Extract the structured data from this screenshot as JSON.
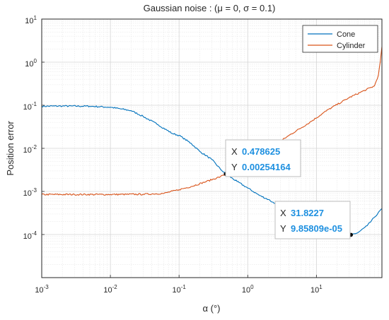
{
  "chart_data": {
    "type": "line",
    "title": "Gaussian noise : (μ = 0, σ = 0.1)",
    "xlabel": "α (°)",
    "ylabel": "Position error",
    "xscale": "log",
    "yscale": "log",
    "xlim": [
      0.001,
      90
    ],
    "ylim": [
      1e-05,
      10
    ],
    "grid": true,
    "minor_grid": true,
    "legend_position": "top-right",
    "x_ticks": [
      {
        "base": "10",
        "exp": "-3"
      },
      {
        "base": "10",
        "exp": "-2"
      },
      {
        "base": "10",
        "exp": "-1"
      },
      {
        "base": "10",
        "exp": "0"
      },
      {
        "base": "10",
        "exp": "1"
      }
    ],
    "y_ticks": [
      {
        "base": "10",
        "exp": "-4"
      },
      {
        "base": "10",
        "exp": "-3"
      },
      {
        "base": "10",
        "exp": "-2"
      },
      {
        "base": "10",
        "exp": "-1"
      },
      {
        "base": "10",
        "exp": "0"
      },
      {
        "base": "10",
        "exp": "1"
      }
    ],
    "series": [
      {
        "name": "Cone",
        "color": "#0072bd",
        "points": [
          [
            0.001,
            0.095
          ],
          [
            0.002,
            0.096
          ],
          [
            0.005,
            0.095
          ],
          [
            0.01,
            0.09
          ],
          [
            0.02,
            0.075
          ],
          [
            0.03,
            0.055
          ],
          [
            0.05,
            0.035
          ],
          [
            0.08,
            0.022
          ],
          [
            0.1,
            0.02
          ],
          [
            0.15,
            0.013
          ],
          [
            0.2,
            0.0085
          ],
          [
            0.3,
            0.0055
          ],
          [
            0.4,
            0.0033
          ],
          [
            0.478625,
            0.00254164
          ],
          [
            0.7,
            0.0017
          ],
          [
            1.0,
            0.0012
          ],
          [
            1.5,
            0.0008
          ],
          [
            2.0,
            0.00065
          ],
          [
            2.5,
            0.00052
          ],
          [
            3.0,
            0.00048
          ],
          [
            5.0,
            0.0004
          ],
          [
            8.0,
            0.00033
          ],
          [
            12.0,
            0.00025
          ],
          [
            18.0,
            0.00017
          ],
          [
            25.0,
            0.00012
          ],
          [
            31.8227,
            9.85809e-05
          ],
          [
            40.0,
            0.00011
          ],
          [
            55.0,
            0.00016
          ],
          [
            70.0,
            0.00025
          ],
          [
            90.0,
            0.0004
          ]
        ]
      },
      {
        "name": "Cylinder",
        "color": "#d95319",
        "points": [
          [
            0.001,
            0.00085
          ],
          [
            0.003,
            0.00085
          ],
          [
            0.01,
            0.00085
          ],
          [
            0.03,
            0.00086
          ],
          [
            0.06,
            0.0009
          ],
          [
            0.1,
            0.0011
          ],
          [
            0.15,
            0.0013
          ],
          [
            0.25,
            0.0017
          ],
          [
            0.4,
            0.0022
          ],
          [
            0.478625,
            0.00254164
          ],
          [
            0.7,
            0.0033
          ],
          [
            1.0,
            0.0048
          ],
          [
            1.5,
            0.007
          ],
          [
            2.5,
            0.012
          ],
          [
            4.0,
            0.02
          ],
          [
            8.0,
            0.04
          ],
          [
            15.0,
            0.08
          ],
          [
            30.0,
            0.15
          ],
          [
            50.0,
            0.22
          ],
          [
            70.0,
            0.28
          ],
          [
            80.0,
            0.5
          ],
          [
            85.0,
            1.0
          ],
          [
            90.0,
            2.3
          ]
        ]
      }
    ],
    "datatips": [
      {
        "x_label": "X",
        "y_label": "Y",
        "x_value": "0.478625",
        "y_value": "0.00254164",
        "x": 0.478625,
        "y": 0.00254164
      },
      {
        "x_label": "X",
        "y_label": "Y",
        "x_value": "31.8227",
        "y_value": "9.85809e-05",
        "x": 31.8227,
        "y": 9.85809e-05
      }
    ]
  }
}
